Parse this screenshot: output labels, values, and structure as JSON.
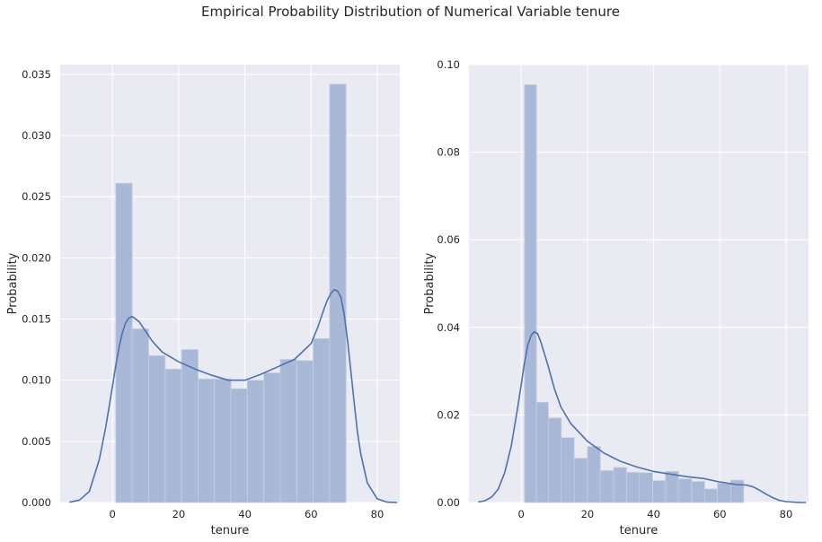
{
  "title": "Empirical Probability Distribution of Numerical Variable tenure",
  "colors": {
    "plot_bg": "#eaeaf2",
    "grid": "#ffffff",
    "bar": "#aab8d7",
    "bar_edge": "#c3cde4",
    "kde": "#4c72b0",
    "text": "#262626"
  },
  "chart_data": [
    {
      "type": "bar",
      "subtype": "histogram+kde",
      "xlabel": "tenure",
      "ylabel": "Probability",
      "xlim": [
        -15.8,
        86.8
      ],
      "ylim": [
        0,
        0.0358
      ],
      "xticks": [
        0,
        20,
        40,
        60,
        80
      ],
      "yticks": [
        0,
        0.005,
        0.01,
        0.015,
        0.02,
        0.025,
        0.03,
        0.035
      ],
      "ytick_labels": [
        "0.000",
        "0.005",
        "0.010",
        "0.015",
        "0.020",
        "0.025",
        "0.030",
        "0.035"
      ],
      "grid": true,
      "bins": [
        {
          "x0": 1.0,
          "x1": 5.97,
          "value": 0.0261
        },
        {
          "x0": 5.97,
          "x1": 10.94,
          "value": 0.0142
        },
        {
          "x0": 10.94,
          "x1": 15.91,
          "value": 0.012
        },
        {
          "x0": 15.91,
          "x1": 20.88,
          "value": 0.0109
        },
        {
          "x0": 20.88,
          "x1": 25.85,
          "value": 0.0125
        },
        {
          "x0": 25.85,
          "x1": 30.82,
          "value": 0.0101
        },
        {
          "x0": 30.82,
          "x1": 35.79,
          "value": 0.0101
        },
        {
          "x0": 35.79,
          "x1": 40.76,
          "value": 0.0093
        },
        {
          "x0": 40.76,
          "x1": 45.73,
          "value": 0.01
        },
        {
          "x0": 45.73,
          "x1": 50.7,
          "value": 0.0106
        },
        {
          "x0": 50.7,
          "x1": 55.67,
          "value": 0.0117
        },
        {
          "x0": 55.67,
          "x1": 60.64,
          "value": 0.0116
        },
        {
          "x0": 60.64,
          "x1": 65.61,
          "value": 0.0134
        },
        {
          "x0": 65.61,
          "x1": 70.58,
          "value": 0.0342
        }
      ],
      "kde": {
        "x": [
          -13,
          -10,
          -7,
          -4,
          -2,
          0,
          1,
          2,
          3,
          4,
          5,
          6,
          8,
          10,
          12,
          15,
          20,
          25,
          30,
          35,
          40,
          45,
          50,
          55,
          60,
          62,
          64,
          65,
          66,
          67,
          68,
          69,
          70,
          71,
          72,
          73,
          74,
          75,
          77,
          80,
          83,
          86
        ],
        "y": [
          2e-05,
          0.0002,
          0.0009,
          0.0035,
          0.0062,
          0.0095,
          0.0112,
          0.0127,
          0.0139,
          0.0147,
          0.0151,
          0.0152,
          0.0148,
          0.014,
          0.0132,
          0.0123,
          0.0115,
          0.0109,
          0.0104,
          0.01,
          0.01,
          0.0105,
          0.0111,
          0.0117,
          0.013,
          0.0143,
          0.0159,
          0.0166,
          0.0171,
          0.0174,
          0.0173,
          0.0168,
          0.0154,
          0.0133,
          0.0108,
          0.0082,
          0.0058,
          0.004,
          0.0016,
          0.0003,
          3e-05,
          0.0
        ]
      }
    },
    {
      "type": "bar",
      "subtype": "histogram+kde",
      "xlabel": "tenure",
      "ylabel": "Probability",
      "xlim": [
        -15.8,
        86.8
      ],
      "ylim": [
        0,
        0.1
      ],
      "xticks": [
        0,
        20,
        40,
        60,
        80
      ],
      "yticks": [
        0,
        0.02,
        0.04,
        0.06,
        0.08,
        0.1
      ],
      "ytick_labels": [
        "0.00",
        "0.02",
        "0.04",
        "0.06",
        "0.08",
        "0.10"
      ],
      "grid": true,
      "bins": [
        {
          "x0": 1.0,
          "x1": 4.6,
          "value": 0.0954
        },
        {
          "x0": 4.6,
          "x1": 8.2,
          "value": 0.0229
        },
        {
          "x0": 8.2,
          "x1": 12.1,
          "value": 0.0193
        },
        {
          "x0": 12.1,
          "x1": 16.0,
          "value": 0.0148
        },
        {
          "x0": 16.0,
          "x1": 20.0,
          "value": 0.0101
        },
        {
          "x0": 20.0,
          "x1": 23.9,
          "value": 0.0128
        },
        {
          "x0": 23.9,
          "x1": 27.9,
          "value": 0.0073
        },
        {
          "x0": 27.9,
          "x1": 31.8,
          "value": 0.008
        },
        {
          "x0": 31.8,
          "x1": 35.7,
          "value": 0.0069
        },
        {
          "x0": 35.7,
          "x1": 39.7,
          "value": 0.0068
        },
        {
          "x0": 39.7,
          "x1": 43.6,
          "value": 0.005
        },
        {
          "x0": 43.6,
          "x1": 47.5,
          "value": 0.0071
        },
        {
          "x0": 47.5,
          "x1": 51.5,
          "value": 0.0054
        },
        {
          "x0": 51.5,
          "x1": 55.4,
          "value": 0.0048
        },
        {
          "x0": 55.4,
          "x1": 59.3,
          "value": 0.0031
        },
        {
          "x0": 59.3,
          "x1": 63.3,
          "value": 0.0044
        },
        {
          "x0": 63.3,
          "x1": 67.2,
          "value": 0.0051
        }
      ],
      "kde": {
        "x": [
          -13,
          -11,
          -9,
          -7,
          -5,
          -3,
          -1,
          0,
          1,
          2,
          3,
          4,
          5,
          6,
          8,
          10,
          12,
          15,
          20,
          25,
          30,
          35,
          40,
          45,
          50,
          55,
          60,
          65,
          68,
          70,
          72,
          74,
          76,
          78,
          80,
          82,
          84,
          86
        ],
        "y": [
          0.0001,
          0.0004,
          0.0012,
          0.003,
          0.0068,
          0.013,
          0.022,
          0.027,
          0.032,
          0.036,
          0.0382,
          0.039,
          0.0385,
          0.0365,
          0.0315,
          0.026,
          0.0218,
          0.018,
          0.014,
          0.0113,
          0.0094,
          0.0081,
          0.0071,
          0.0065,
          0.0059,
          0.0055,
          0.0047,
          0.0041,
          0.004,
          0.0036,
          0.0028,
          0.0019,
          0.0011,
          0.0005,
          0.0002,
          0.0001,
          3e-05,
          0.0
        ]
      }
    }
  ]
}
